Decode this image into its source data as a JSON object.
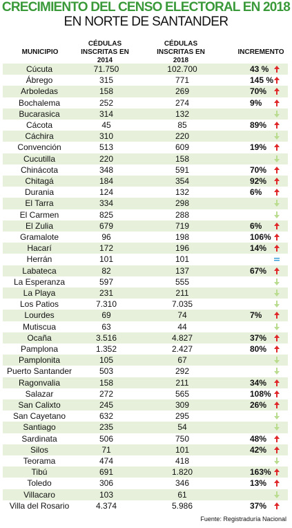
{
  "header": {
    "title": "CRECIMIENTO DEL CENSO ELECTORAL EN 2018",
    "subtitle": "EN NORTE DE SANTANDER"
  },
  "table": {
    "columns": [
      "MUNICIPIO",
      "CÉDULAS INSCRITAS EN 2014",
      "CÉDULAS INSCRITAS EN 2018",
      "INCREMENTO"
    ],
    "rows": [
      {
        "municipio": "Cúcuta",
        "c2014": "71.750",
        "c2018": "102.700",
        "incremento": "43 %"
      },
      {
        "municipio": "Ábrego",
        "c2014": "315",
        "c2018": "771",
        "incremento": "145 %"
      },
      {
        "municipio": "Arboledas",
        "c2014": "158",
        "c2018": "269",
        "incremento": "70%"
      },
      {
        "municipio": "Bochalema",
        "c2014": "252",
        "c2018": "274",
        "incremento": "9%"
      },
      {
        "municipio": "Bucarasica",
        "c2014": "314",
        "c2018": "132"
      },
      {
        "municipio": "Cácota",
        "c2014": "45",
        "c2018": "85",
        "incremento": "89%"
      },
      {
        "municipio": "Cáchira",
        "c2014": "310",
        "c2018": "220"
      },
      {
        "municipio": "Convención",
        "c2014": "513",
        "c2018": "609",
        "incremento": "19%"
      },
      {
        "municipio": "Cucutilla",
        "c2014": "220",
        "c2018": "158"
      },
      {
        "municipio": "Chinácota",
        "c2014": "348",
        "c2018": "591",
        "incremento": "70%"
      },
      {
        "municipio": "Chitagá",
        "c2014": "184",
        "c2018": "354",
        "incremento": "92%"
      },
      {
        "municipio": "Durania",
        "c2014": "124",
        "c2018": "132",
        "incremento": "6%"
      },
      {
        "municipio": "El Tarra",
        "c2014": "334",
        "c2018": "298"
      },
      {
        "municipio": "El Carmen",
        "c2014": "825",
        "c2018": "288"
      },
      {
        "municipio": "El Zulia",
        "c2014": "679",
        "c2018": "719",
        "incremento": "6%"
      },
      {
        "municipio": "Gramalote",
        "c2014": "96",
        "c2018": "198",
        "incremento": "106%"
      },
      {
        "municipio": "Hacarí",
        "c2014": "172",
        "c2018": "196",
        "incremento": "14%"
      },
      {
        "municipio": "Herrán",
        "c2014": "101",
        "c2018": "101"
      },
      {
        "municipio": "Labateca",
        "c2014": "82",
        "c2018": "137",
        "incremento": "67%"
      },
      {
        "municipio": "La Esperanza",
        "c2014": "597",
        "c2018": "555"
      },
      {
        "municipio": "La Playa",
        "c2014": "231",
        "c2018": "211"
      },
      {
        "municipio": "Los Patios",
        "c2014": "7.310",
        "c2018": "7.035"
      },
      {
        "municipio": "Lourdes",
        "c2014": "69",
        "c2018": "74",
        "incremento": "7%"
      },
      {
        "municipio": "Mutiscua",
        "c2014": "63",
        "c2018": "44"
      },
      {
        "municipio": "Ocaña",
        "c2014": "3.516",
        "c2018": "4.827",
        "incremento": "37%"
      },
      {
        "municipio": "Pamplona",
        "c2014": "1.352",
        "c2018": "2.427",
        "incremento": "80%"
      },
      {
        "municipio": "Pamplonita",
        "c2014": "105",
        "c2018": "67"
      },
      {
        "municipio": "Puerto Santander",
        "c2014": "503",
        "c2018": "292"
      },
      {
        "municipio": "Ragonvalia",
        "c2014": "158",
        "c2018": "211",
        "incremento": "34%"
      },
      {
        "municipio": "Salazar",
        "c2014": "272",
        "c2018": "565",
        "incremento": "108%"
      },
      {
        "municipio": "San Calixto",
        "c2014": "245",
        "c2018": "309",
        "incremento": "26%"
      },
      {
        "municipio": "San Cayetano",
        "c2014": "632",
        "c2018": "295"
      },
      {
        "municipio": "Santiago",
        "c2014": "235",
        "c2018": "54"
      },
      {
        "municipio": "Sardinata",
        "c2014": "506",
        "c2018": "750",
        "incremento": "48%"
      },
      {
        "municipio": "Silos",
        "c2014": "71",
        "c2018": "101",
        "incremento": "42%"
      },
      {
        "municipio": "Teorama",
        "c2014": "474",
        "c2018": "418"
      },
      {
        "municipio": "Tibú",
        "c2014": "691",
        "c2018": "1.820",
        "incremento": "163%"
      },
      {
        "municipio": "Toledo",
        "c2014": "306",
        "c2018": "346",
        "incremento": "13%"
      },
      {
        "municipio": "Villacaro",
        "c2014": "103",
        "c2018": "61"
      },
      {
        "municipio": "Villa del Rosario",
        "c2014": "4.374",
        "c2018": "5.986",
        "incremento": "37%"
      }
    ]
  },
  "footer": {
    "source": "Fuente: Registraduría Nacional"
  }
}
